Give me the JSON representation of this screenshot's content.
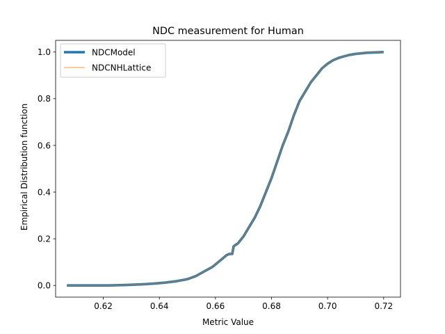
{
  "chart_data": {
    "type": "line",
    "title": "NDC measurement for Human",
    "xlabel": "Metric Value",
    "ylabel": "Empirical Distribution function",
    "xlim": [
      0.603,
      0.726
    ],
    "ylim": [
      -0.05,
      1.05
    ],
    "xticks": [
      0.62,
      0.64,
      0.66,
      0.68,
      0.7,
      0.72
    ],
    "xtick_labels": [
      "0.62",
      "0.64",
      "0.66",
      "0.68",
      "0.70",
      "0.72"
    ],
    "yticks": [
      0.0,
      0.2,
      0.4,
      0.6,
      0.8,
      1.0
    ],
    "ytick_labels": [
      "0.0",
      "0.2",
      "0.4",
      "0.6",
      "0.8",
      "1.0"
    ],
    "grid": false,
    "legend_position": "top-left",
    "series": [
      {
        "name": "NDCModel",
        "color": "#1f77b4",
        "x": [
          0.607,
          0.615,
          0.622,
          0.628,
          0.634,
          0.638,
          0.642,
          0.646,
          0.65,
          0.653,
          0.656,
          0.659,
          0.662,
          0.664,
          0.665,
          0.666,
          0.6665,
          0.667,
          0.668,
          0.67,
          0.672,
          0.674,
          0.676,
          0.678,
          0.68,
          0.682,
          0.684,
          0.686,
          0.688,
          0.69,
          0.692,
          0.694,
          0.696,
          0.698,
          0.7,
          0.702,
          0.704,
          0.706,
          0.708,
          0.71,
          0.714,
          0.72
        ],
        "y": [
          0.0,
          0.0,
          0.0,
          0.002,
          0.005,
          0.008,
          0.012,
          0.018,
          0.027,
          0.04,
          0.06,
          0.08,
          0.11,
          0.13,
          0.135,
          0.135,
          0.168,
          0.172,
          0.18,
          0.21,
          0.25,
          0.29,
          0.34,
          0.4,
          0.46,
          0.53,
          0.6,
          0.66,
          0.73,
          0.79,
          0.83,
          0.87,
          0.9,
          0.93,
          0.95,
          0.965,
          0.975,
          0.982,
          0.988,
          0.992,
          0.997,
          1.0
        ]
      },
      {
        "name": "NDCNHLattice",
        "color": "#ff7f0e",
        "x": [
          0.607,
          0.615,
          0.622,
          0.628,
          0.634,
          0.638,
          0.642,
          0.646,
          0.65,
          0.653,
          0.656,
          0.659,
          0.662,
          0.664,
          0.665,
          0.666,
          0.6665,
          0.667,
          0.668,
          0.67,
          0.672,
          0.674,
          0.676,
          0.678,
          0.68,
          0.682,
          0.684,
          0.686,
          0.688,
          0.69,
          0.692,
          0.694,
          0.696,
          0.698,
          0.7,
          0.702,
          0.704,
          0.706,
          0.708,
          0.71,
          0.714,
          0.72
        ],
        "y": [
          0.0,
          0.0,
          0.0,
          0.002,
          0.005,
          0.008,
          0.012,
          0.018,
          0.027,
          0.04,
          0.06,
          0.08,
          0.11,
          0.13,
          0.135,
          0.135,
          0.168,
          0.172,
          0.18,
          0.21,
          0.25,
          0.29,
          0.34,
          0.4,
          0.46,
          0.53,
          0.6,
          0.66,
          0.73,
          0.79,
          0.83,
          0.87,
          0.9,
          0.93,
          0.95,
          0.965,
          0.975,
          0.982,
          0.988,
          0.992,
          0.997,
          1.0
        ]
      }
    ]
  }
}
